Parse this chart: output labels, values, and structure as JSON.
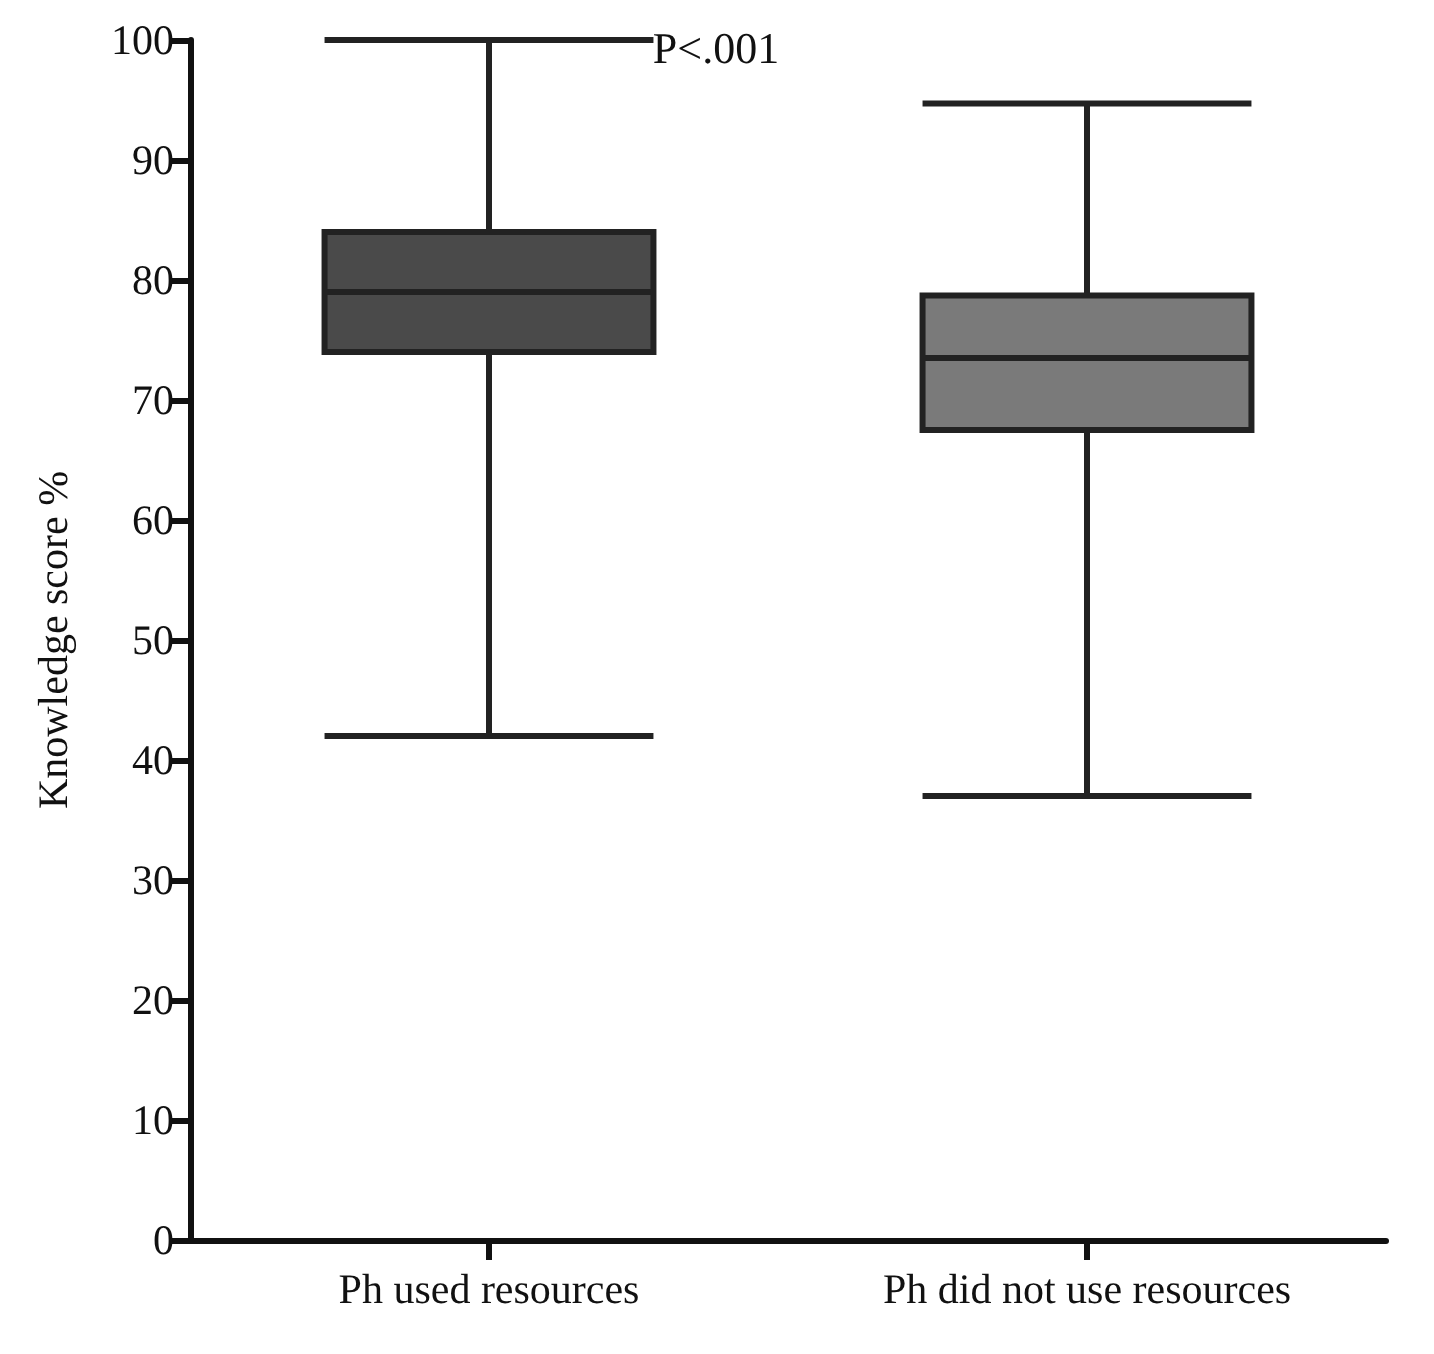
{
  "chart_data": {
    "type": "box",
    "ylabel": "Knowledge score %",
    "categories": [
      "Ph used resources",
      "Ph did not use resources"
    ],
    "boxes": [
      {
        "low": 42,
        "q1": 74,
        "median": 79,
        "q3": 84,
        "high": 100
      },
      {
        "low": 37,
        "q1": 67.5,
        "median": 73.5,
        "q3": 78.7,
        "high": 94.7
      }
    ],
    "colors": [
      "#4a4a4a",
      "#7a7a7a"
    ],
    "ylim": [
      0,
      100
    ],
    "yticks": [
      0,
      10,
      20,
      30,
      40,
      50,
      60,
      70,
      80,
      90,
      100
    ],
    "grid": false,
    "annotations": [
      "P<.001"
    ]
  }
}
